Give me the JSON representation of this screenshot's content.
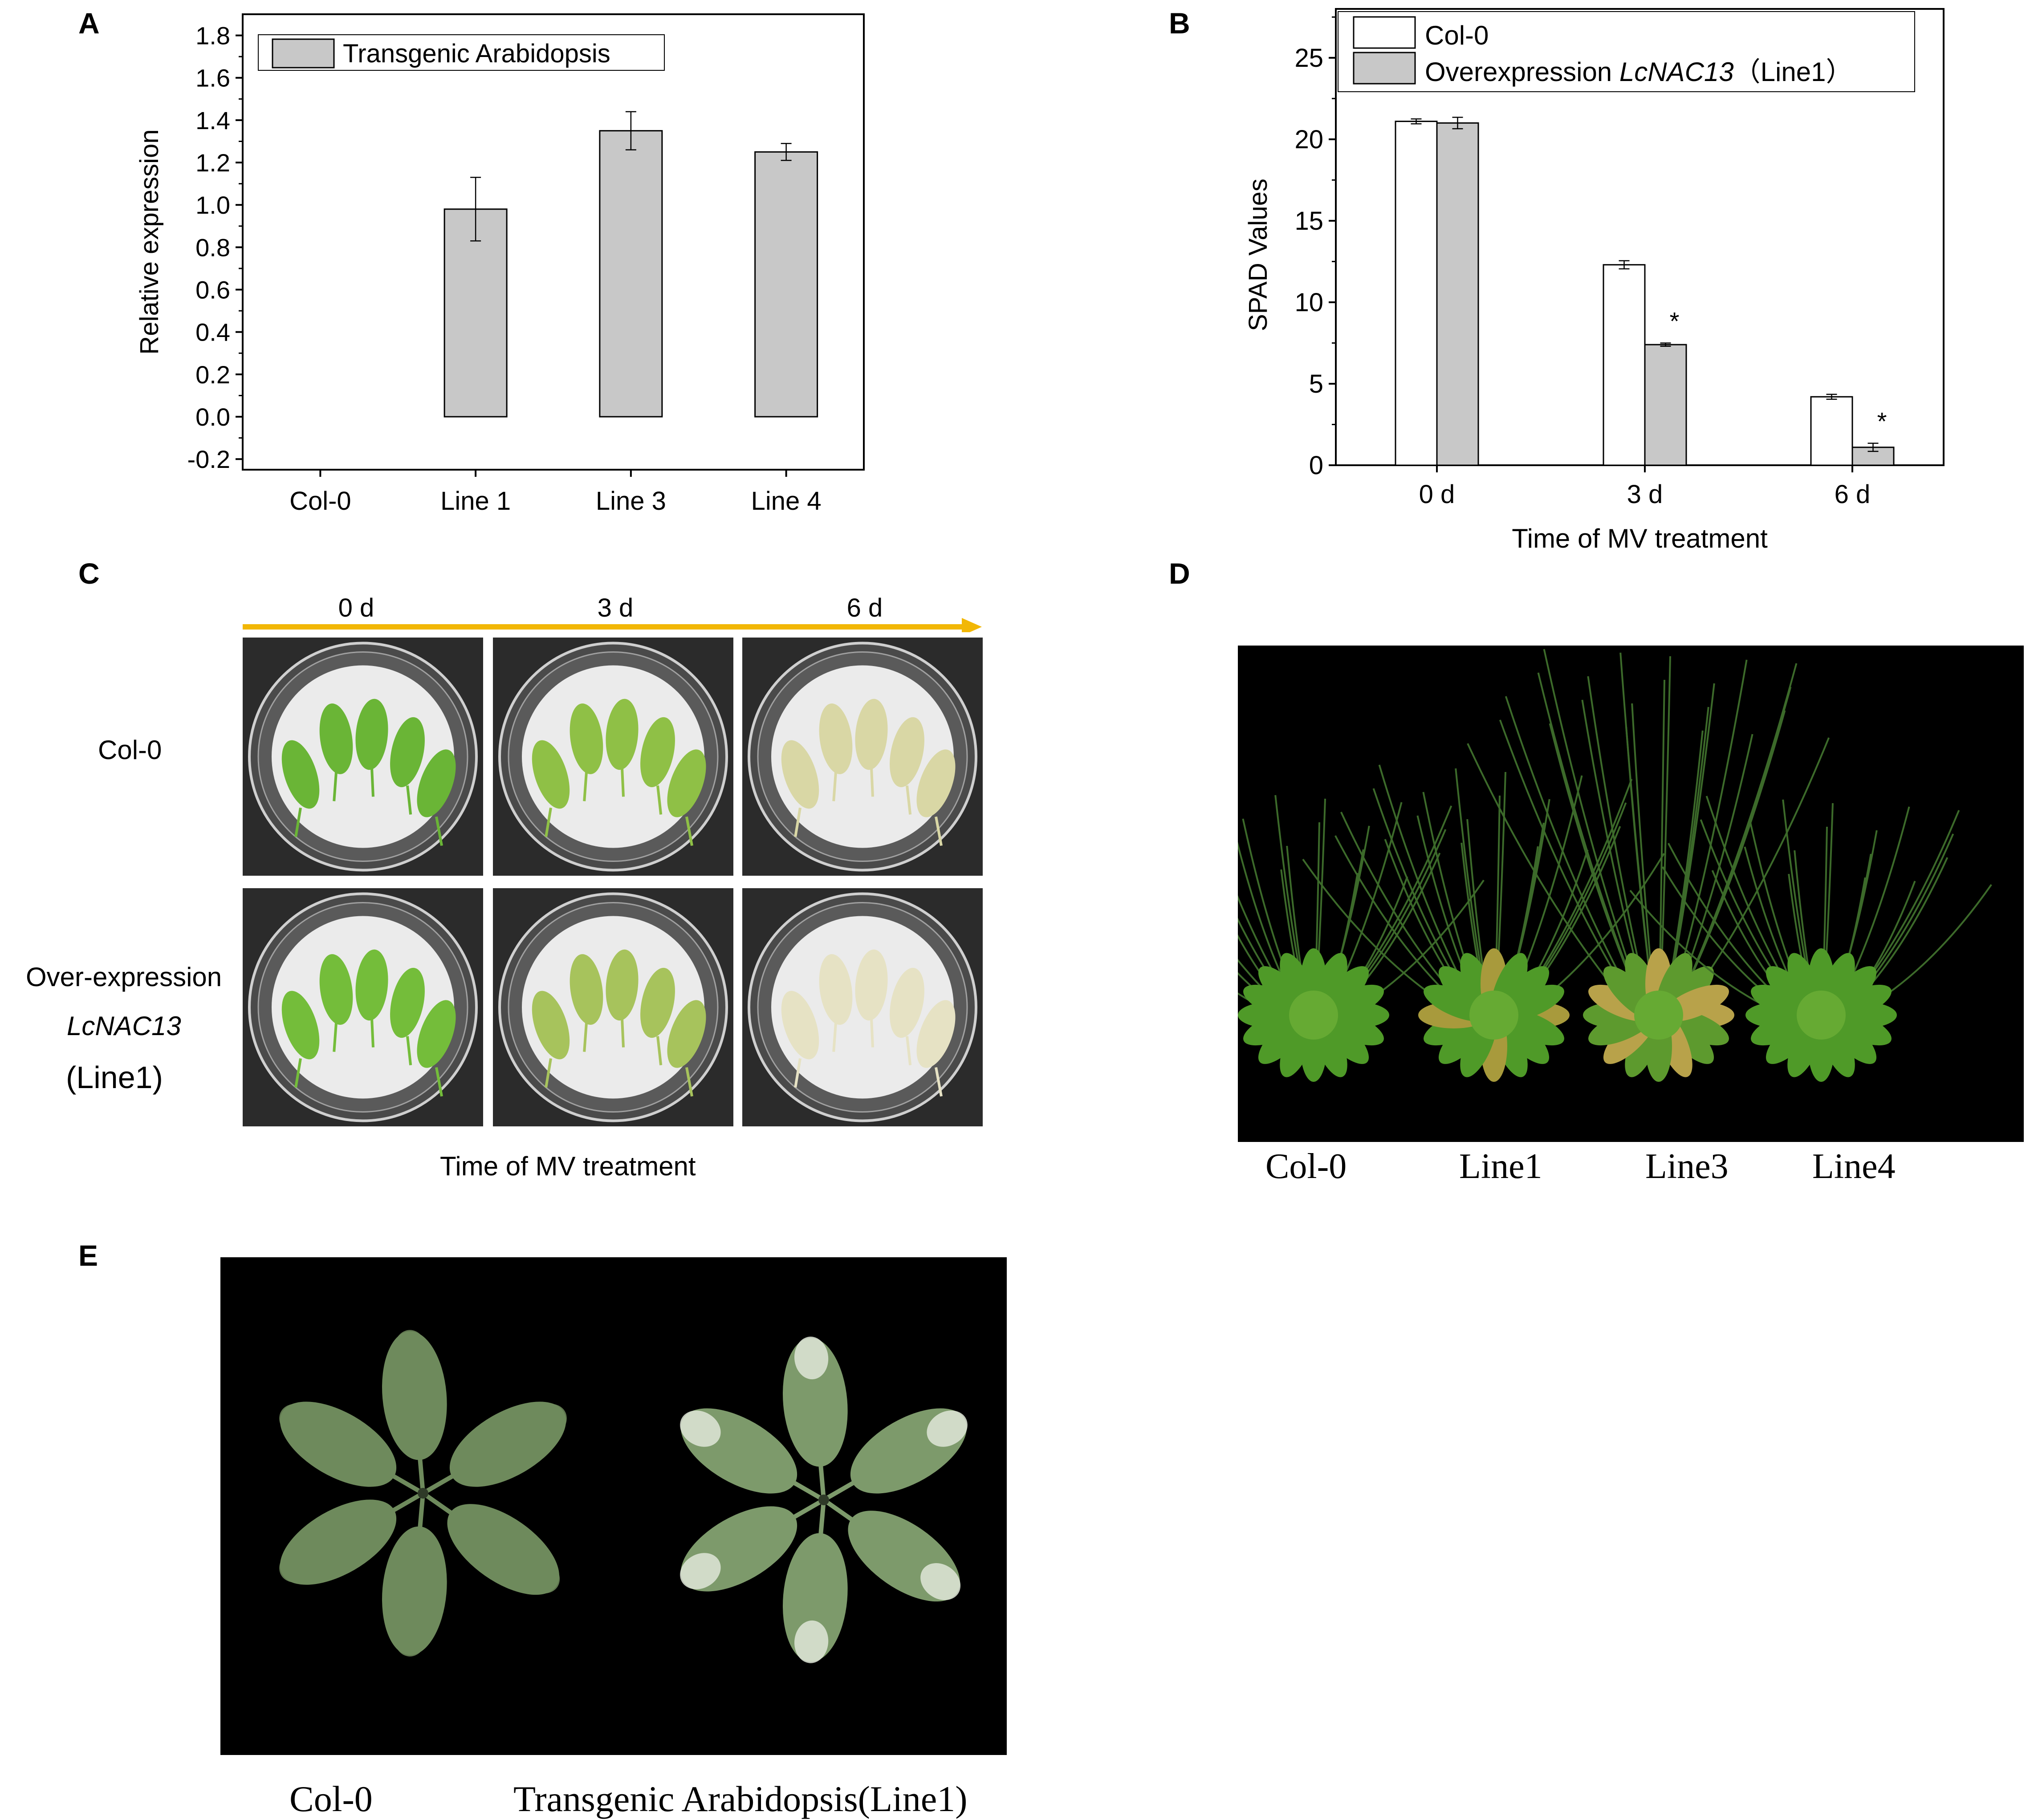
{
  "panels": {
    "A": {
      "letter": "A"
    },
    "B": {
      "letter": "B"
    },
    "C": {
      "letter": "C"
    },
    "D": {
      "letter": "D"
    },
    "E": {
      "letter": "E"
    }
  },
  "chart_data": [
    {
      "id": "A",
      "type": "bar",
      "ylabel": "Relative expression",
      "xlabel": "",
      "categories": [
        "Col-0",
        "Line 1",
        "Line 3",
        "Line 4"
      ],
      "series": [
        {
          "name": "Transgenic Arabidopsis",
          "values": [
            0.0,
            0.98,
            1.35,
            1.25
          ],
          "errors": [
            0.0,
            0.15,
            0.09,
            0.04
          ],
          "color": "#c8c8c8"
        }
      ],
      "ylim": [
        -0.25,
        1.9
      ],
      "yticks": [
        -0.2,
        0.0,
        0.2,
        0.4,
        0.6,
        0.8,
        1.0,
        1.2,
        1.4,
        1.6,
        1.8
      ],
      "ytick_labels": [
        "-0.2",
        "0.0",
        "0.2",
        "0.4",
        "0.6",
        "0.8",
        "1.0",
        "1.2",
        "1.4",
        "1.6",
        "1.8"
      ],
      "legend_position": "top-left",
      "grid": false
    },
    {
      "id": "B",
      "type": "bar",
      "ylabel": "SPAD Values",
      "xlabel": "Time of MV treatment",
      "categories": [
        "0 d",
        "3 d",
        "6 d"
      ],
      "series": [
        {
          "name": "Col-0",
          "values": [
            21.1,
            12.3,
            4.2
          ],
          "errors": [
            0.15,
            0.25,
            0.15
          ],
          "color": "#ffffff"
        },
        {
          "name_prefix": "Overexpression ",
          "name_italic": "LcNAC13",
          "name_suffix": "（Line1）",
          "values": [
            21.0,
            7.4,
            1.1
          ],
          "errors": [
            0.35,
            0.1,
            0.25
          ],
          "color": "#c8c8c8"
        }
      ],
      "significance": [
        "",
        "*",
        "*"
      ],
      "ylim": [
        0,
        28
      ],
      "yticks": [
        0,
        5,
        10,
        15,
        20,
        25
      ],
      "ytick_labels": [
        "0",
        "5",
        "10",
        "15",
        "20",
        "25"
      ],
      "legend_position": "top",
      "grid": false
    }
  ],
  "panel_c": {
    "timepoints": [
      "0 d",
      "3 d",
      "6 d"
    ],
    "rows": [
      "Col-0",
      "Over-expression",
      "LcNAC13",
      "(Line1)"
    ],
    "xlabel": "Time of MV treatment",
    "arrow_color": "#f2b705",
    "leaf_colors": {
      "col0": [
        "#6ab536",
        "#8fc046",
        "#d9d7a5"
      ],
      "oe": [
        "#74bd3a",
        "#a7c35c",
        "#e6e2c4"
      ]
    }
  },
  "panel_d": {
    "labels": [
      "Col-0",
      "Line1",
      "Line3",
      "Line4"
    ]
  },
  "panel_e": {
    "labels": [
      "Col-0",
      "Transgenic Arabidopsis(Line1)"
    ]
  }
}
